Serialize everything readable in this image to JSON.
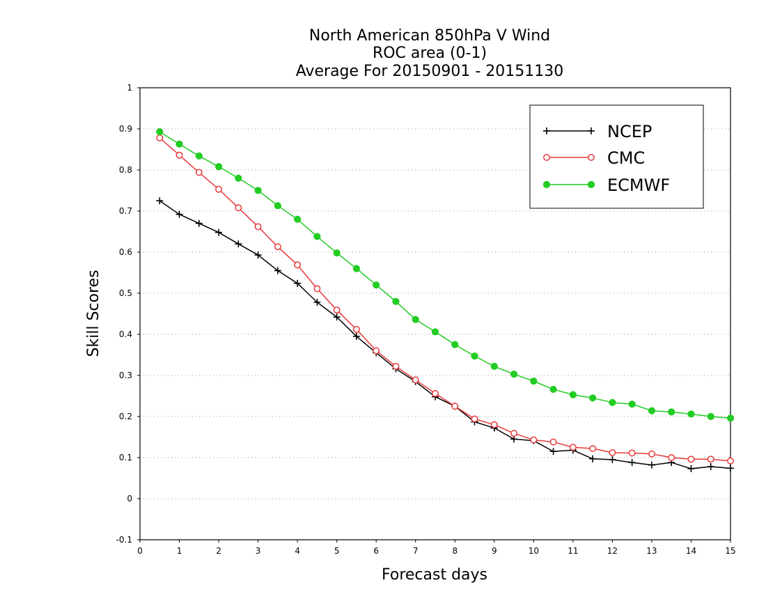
{
  "chart_data": {
    "type": "line",
    "title": [
      "North American 850hPa V Wind",
      "ROC area (0-1)",
      "Average For 20150901 - 20151130"
    ],
    "xlabel": "Forecast days",
    "ylabel": "Skill Scores",
    "xlim": [
      0,
      15
    ],
    "ylim": [
      -0.1,
      1
    ],
    "xticks": [
      0,
      1,
      2,
      3,
      4,
      5,
      6,
      7,
      8,
      9,
      10,
      11,
      12,
      13,
      14,
      15
    ],
    "xtick_labels": [
      "0",
      "1",
      "2",
      "3",
      "4",
      "5",
      "6",
      "7",
      "8",
      "9",
      "10",
      "11",
      "12",
      "13",
      "14",
      "15"
    ],
    "yticks": [
      -0.1,
      0,
      0.1,
      0.2,
      0.3,
      0.4,
      0.5,
      0.6,
      0.7,
      0.8,
      0.9,
      1
    ],
    "ytick_labels": [
      "-0.1",
      "0",
      "0.1",
      "0.2",
      "0.3",
      "0.4",
      "0.5",
      "0.6",
      "0.7",
      "0.8",
      "0.9",
      "1"
    ],
    "grid": "horizontal dotted",
    "legend_position": "top-right",
    "x": [
      0.5,
      1,
      1.5,
      2,
      2.5,
      3,
      3.5,
      4,
      4.5,
      5,
      5.5,
      6,
      6.5,
      7,
      7.5,
      8,
      8.5,
      9,
      9.5,
      10,
      10.5,
      11,
      11.5,
      12,
      12.5,
      13,
      13.5,
      14,
      14.5,
      15
    ],
    "series": [
      {
        "name": "NCEP",
        "color": "#000000",
        "marker": "plus",
        "values": [
          0.725,
          0.692,
          0.67,
          0.648,
          0.62,
          0.593,
          0.555,
          0.524,
          0.478,
          0.442,
          0.395,
          0.355,
          0.316,
          0.285,
          0.248,
          0.225,
          0.187,
          0.172,
          0.145,
          0.141,
          0.115,
          0.118,
          0.097,
          0.095,
          0.088,
          0.082,
          0.088,
          0.073,
          0.078,
          0.074
        ]
      },
      {
        "name": "CMC",
        "color": "#e8383b",
        "marker": "open-circle",
        "values": [
          0.878,
          0.836,
          0.794,
          0.753,
          0.708,
          0.662,
          0.613,
          0.569,
          0.511,
          0.459,
          0.412,
          0.36,
          0.322,
          0.289,
          0.256,
          0.225,
          0.194,
          0.18,
          0.159,
          0.143,
          0.138,
          0.125,
          0.122,
          0.112,
          0.111,
          0.109,
          0.1,
          0.096,
          0.096,
          0.092
        ]
      },
      {
        "name": "ECMWF",
        "color": "#22cc22",
        "marker": "filled-circle",
        "values": [
          0.893,
          0.863,
          0.834,
          0.808,
          0.78,
          0.75,
          0.713,
          0.68,
          0.638,
          0.598,
          0.56,
          0.52,
          0.48,
          0.436,
          0.406,
          0.375,
          0.347,
          0.322,
          0.303,
          0.286,
          0.266,
          0.253,
          0.245,
          0.234,
          0.23,
          0.214,
          0.211,
          0.206,
          0.2,
          0.196
        ]
      }
    ]
  }
}
